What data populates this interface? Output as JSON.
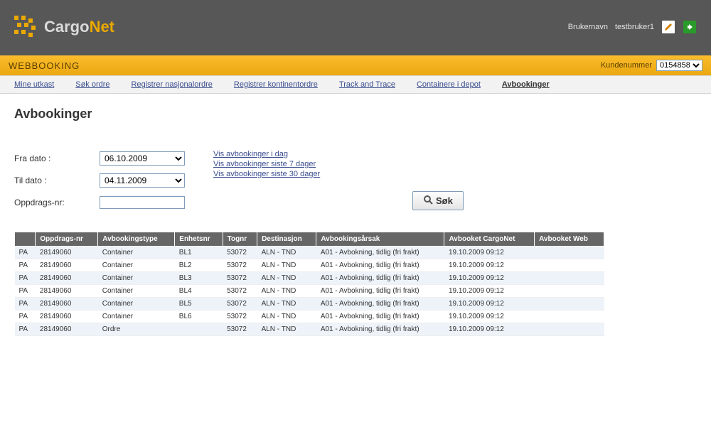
{
  "header": {
    "brand_prefix": "Cargo",
    "brand_suffix": "Net",
    "user_label": "Brukernavn",
    "user_name": "testbruker1"
  },
  "orangebar": {
    "title": "WEBBOOKING",
    "kundenummer_label": "Kundenummer",
    "kundenummer_value": "0154858"
  },
  "menu": {
    "items": [
      "Mine utkast",
      "Søk ordre",
      "Registrer nasjonalordre",
      "Registrer kontinentordre",
      "Track and Trace",
      "Containere i depot",
      "Avbookinger"
    ],
    "active_index": 6
  },
  "page": {
    "title": "Avbookinger",
    "filters": {
      "fra_dato_label": "Fra dato :",
      "fra_dato_value": "06.10.2009",
      "til_dato_label": "Til dato :",
      "til_dato_value": "04.11.2009",
      "oppdragsnr_label": "Oppdrags-nr:",
      "oppdragsnr_value": ""
    },
    "quick_links": [
      "Vis avbookinger i dag",
      "Vis avbookinger siste 7 dager",
      "Vis avbookinger siste 30 dager"
    ],
    "search_label": "Søk"
  },
  "table": {
    "columns": [
      "",
      "Oppdrags-nr",
      "Avbookingstype",
      "Enhetsnr",
      "Tognr",
      "Destinasjon",
      "Avbookingsårsak",
      "Avbooket CargoNet",
      "Avbooket Web"
    ],
    "rows": [
      [
        "PA",
        "28149060",
        "Container",
        "BL1",
        "53072",
        "ALN - TND",
        "A01 - Avbokning, tidlig (fri frakt)",
        "19.10.2009 09:12",
        ""
      ],
      [
        "PA",
        "28149060",
        "Container",
        "BL2",
        "53072",
        "ALN - TND",
        "A01 - Avbokning, tidlig (fri frakt)",
        "19.10.2009 09:12",
        ""
      ],
      [
        "PA",
        "28149060",
        "Container",
        "BL3",
        "53072",
        "ALN - TND",
        "A01 - Avbokning, tidlig (fri frakt)",
        "19.10.2009 09:12",
        ""
      ],
      [
        "PA",
        "28149060",
        "Container",
        "BL4",
        "53072",
        "ALN - TND",
        "A01 - Avbokning, tidlig (fri frakt)",
        "19.10.2009 09:12",
        ""
      ],
      [
        "PA",
        "28149060",
        "Container",
        "BL5",
        "53072",
        "ALN - TND",
        "A01 - Avbokning, tidlig (fri frakt)",
        "19.10.2009 09:12",
        ""
      ],
      [
        "PA",
        "28149060",
        "Container",
        "BL6",
        "53072",
        "ALN - TND",
        "A01 - Avbokning, tidlig (fri frakt)",
        "19.10.2009 09:12",
        ""
      ],
      [
        "PA",
        "28149060",
        "Ordre",
        "",
        "53072",
        "ALN - TND",
        "A01 - Avbokning, tidlig (fri frakt)",
        "19.10.2009 09:12",
        ""
      ]
    ]
  },
  "colors": {
    "topbar_bg": "#575757",
    "accent": "#eba900",
    "link": "#3a4d8f",
    "tableheader_bg": "#666666",
    "row_even_bg": "#edf3f9"
  }
}
